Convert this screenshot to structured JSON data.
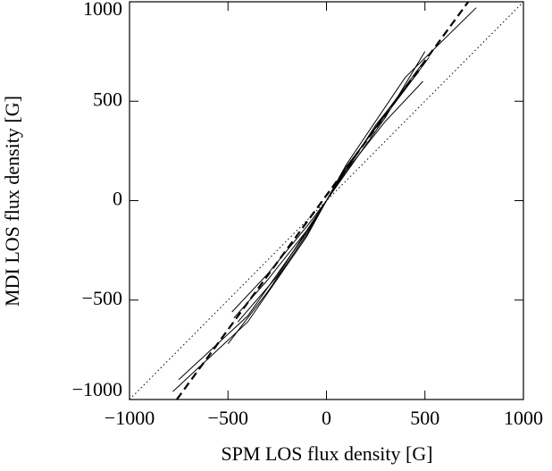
{
  "chart_data": {
    "type": "line",
    "xlabel": "SPM LOS flux density [G]",
    "ylabel": "MDI LOS flux density [G]",
    "xlim": [
      -1000,
      1000
    ],
    "ylim": [
      -1000,
      1000
    ],
    "xticks": [
      {
        "value": -1000,
        "label": "−1000"
      },
      {
        "value": -500,
        "label": "−500"
      },
      0,
      500,
      1000
    ],
    "yticks": [
      {
        "value": -1000,
        "label": "−1000"
      },
      {
        "value": -500,
        "label": "−500"
      },
      0,
      500,
      1000
    ],
    "series": [
      {
        "color": "#000000",
        "style": "dotted",
        "x": [
          -1000,
          1000
        ],
        "values": [
          -1000,
          1000
        ]
      },
      {
        "color": "#000000",
        "style": "dashed",
        "x": [
          -760,
          720
        ],
        "values": [
          -1000,
          1000
        ]
      },
      {
        "color": "#000000",
        "style": "solid",
        "x": [
          -780,
          -400,
          -100,
          0,
          100,
          400,
          760
        ],
        "values": [
          -960,
          -610,
          -180,
          0,
          180,
          620,
          970
        ]
      },
      {
        "color": "#000000",
        "style": "solid",
        "x": [
          -480,
          -300,
          -100,
          0,
          100,
          300,
          500
        ],
        "values": [
          -560,
          -370,
          -130,
          0,
          140,
          420,
          750
        ]
      },
      {
        "color": "#000000",
        "style": "solid",
        "x": [
          -470,
          -300,
          -100,
          0,
          100,
          300,
          490
        ],
        "values": [
          -590,
          -400,
          -150,
          0,
          150,
          400,
          600
        ]
      },
      {
        "color": "#000000",
        "style": "solid",
        "x": [
          -750,
          -400,
          -100,
          0,
          100,
          400,
          520
        ],
        "values": [
          -900,
          -580,
          -160,
          0,
          170,
          560,
          720
        ]
      },
      {
        "color": "#000000",
        "style": "solid",
        "x": [
          -500,
          -300,
          -100,
          0,
          100,
          300,
          480
        ],
        "values": [
          -720,
          -460,
          -170,
          0,
          160,
          440,
          680
        ]
      },
      {
        "color": "#000000",
        "style": "solid",
        "x": [
          -450,
          -250,
          -100,
          0,
          100,
          250,
          470
        ],
        "values": [
          -610,
          -380,
          -150,
          0,
          150,
          380,
          650
        ]
      }
    ]
  }
}
